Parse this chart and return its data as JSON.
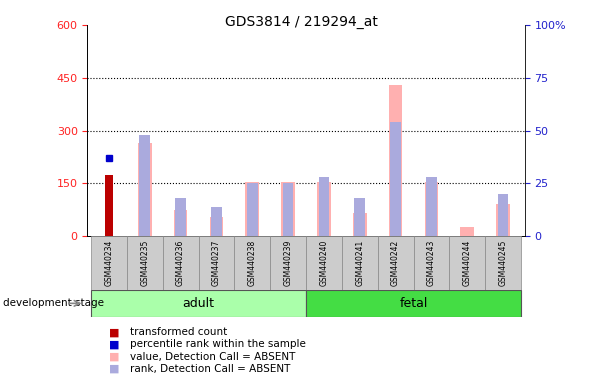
{
  "title": "GDS3814 / 219294_at",
  "samples": [
    "GSM440234",
    "GSM440235",
    "GSM440236",
    "GSM440237",
    "GSM440238",
    "GSM440239",
    "GSM440240",
    "GSM440241",
    "GSM440242",
    "GSM440243",
    "GSM440244",
    "GSM440245"
  ],
  "transformed_count": [
    175,
    null,
    null,
    null,
    null,
    null,
    null,
    null,
    null,
    null,
    null,
    null
  ],
  "percentile_rank_pct": [
    37,
    null,
    null,
    null,
    null,
    null,
    null,
    null,
    null,
    null,
    null,
    null
  ],
  "value_absent": [
    null,
    265,
    75,
    55,
    155,
    155,
    155,
    65,
    430,
    155,
    25,
    90
  ],
  "rank_absent_pct": [
    null,
    48,
    18,
    14,
    25,
    25,
    28,
    18,
    54,
    28,
    null,
    20
  ],
  "left_ylim": [
    0,
    600
  ],
  "right_ylim": [
    0,
    100
  ],
  "left_yticks": [
    0,
    150,
    300,
    450,
    600
  ],
  "right_yticks": [
    0,
    25,
    50,
    75,
    100
  ],
  "left_tick_color": "#ff2222",
  "right_tick_color": "#2222cc",
  "bar_color_transformed": "#bb0000",
  "bar_color_rank": "#0000cc",
  "bar_color_value_absent": "#ffb0b0",
  "bar_color_rank_absent": "#aaaadd",
  "group_adult_color": "#aaffaa",
  "group_fetal_color": "#44dd44",
  "sample_label_bg": "#cccccc",
  "adult_label": "adult",
  "fetal_label": "fetal",
  "dev_stage_label": "development stage",
  "n_adult": 6,
  "n_fetal": 6
}
